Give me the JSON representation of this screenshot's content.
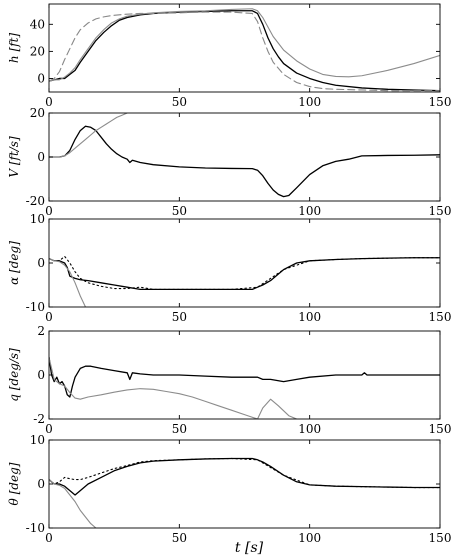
{
  "figure": {
    "x_axis_label": "t  [s]"
  },
  "chart_data": [
    {
      "type": "line",
      "ylabel": "h [ft]",
      "xlim": [
        0,
        150
      ],
      "ylim": [
        -10,
        55
      ],
      "xticks": [
        0,
        50,
        100,
        150
      ],
      "yticks": [
        0,
        20,
        40
      ],
      "grid": false,
      "series": [
        {
          "style": "dark-solid",
          "color": "#000000",
          "dash": "",
          "x": [
            0,
            2,
            4,
            6,
            8,
            10,
            12,
            15,
            18,
            21,
            24,
            27,
            30,
            35,
            40,
            50,
            60,
            70,
            78,
            80,
            82,
            84,
            86,
            88,
            90,
            95,
            100,
            105,
            110,
            120,
            130,
            140,
            150
          ],
          "y": [
            -2,
            -1,
            0,
            0,
            3,
            6,
            12,
            20,
            28,
            34,
            39,
            43,
            45,
            47,
            48,
            49,
            49.5,
            50,
            50,
            48,
            40,
            30,
            22,
            16,
            11,
            4,
            0,
            -3,
            -5,
            -7,
            -8,
            -8.5,
            -9
          ]
        },
        {
          "style": "gray-dashed",
          "color": "#888888",
          "dash": "7,4",
          "x": [
            0,
            2,
            4,
            6,
            8,
            10,
            12,
            15,
            18,
            21,
            24,
            27,
            30,
            35,
            40,
            50,
            60,
            70,
            78,
            80,
            82,
            84,
            86,
            90,
            95,
            100,
            105,
            110,
            120,
            130,
            140,
            150
          ],
          "y": [
            -2,
            0,
            5,
            14,
            22,
            30,
            36,
            41,
            44,
            45.5,
            46.5,
            47,
            47.5,
            48,
            48,
            48.5,
            49,
            49,
            48,
            42,
            30,
            20,
            12,
            3,
            -3,
            -6,
            -7.5,
            -8,
            -8.5,
            -9,
            -9,
            -9
          ]
        },
        {
          "style": "gray-solid",
          "color": "#8c8c8c",
          "dash": "",
          "x": [
            0,
            2,
            4,
            6,
            8,
            10,
            12,
            15,
            18,
            21,
            24,
            27,
            30,
            35,
            40,
            50,
            60,
            70,
            78,
            80,
            82,
            84,
            86,
            88,
            90,
            95,
            100,
            105,
            110,
            115,
            120,
            130,
            140,
            150
          ],
          "y": [
            -2,
            -1,
            -1,
            1,
            4,
            8,
            14,
            22,
            30,
            36,
            41,
            44,
            46,
            47.5,
            48.5,
            49.5,
            50,
            51,
            51.5,
            50,
            45,
            38,
            31,
            26,
            21,
            13,
            7,
            3,
            1.5,
            1.2,
            2,
            6,
            11,
            17
          ]
        }
      ]
    },
    {
      "type": "line",
      "ylabel": "V [ft/s]",
      "xlim": [
        0,
        150
      ],
      "ylim": [
        -20,
        20
      ],
      "xticks": [
        0,
        50,
        100,
        150
      ],
      "yticks": [
        -20,
        0,
        20
      ],
      "grid": false,
      "series": [
        {
          "style": "dark-solid",
          "color": "#000000",
          "dash": "",
          "x": [
            0,
            4,
            6,
            8,
            10,
            12,
            14,
            16,
            18,
            20,
            22,
            24,
            26,
            28,
            30,
            31,
            32,
            35,
            40,
            50,
            60,
            70,
            78,
            80,
            82,
            84,
            86,
            88,
            90,
            92,
            95,
            100,
            105,
            110,
            115,
            120,
            130,
            140,
            150
          ],
          "y": [
            0,
            0,
            0.5,
            3,
            8,
            12,
            14,
            13.5,
            12,
            9,
            6,
            3.5,
            1.5,
            0,
            -1,
            -2.5,
            -1.5,
            -2.5,
            -3.5,
            -4.5,
            -5,
            -5.2,
            -5.3,
            -6,
            -8.5,
            -12,
            -15,
            -17,
            -18,
            -17.5,
            -14,
            -8,
            -4,
            -2,
            -1,
            0.5,
            0.7,
            0.8,
            1
          ]
        },
        {
          "style": "gray-solid",
          "color": "#8c8c8c",
          "dash": "",
          "x": [
            0,
            4,
            6,
            8,
            10,
            12,
            14,
            16,
            18,
            20,
            22,
            24,
            26,
            28,
            30
          ],
          "y": [
            0,
            0,
            0.5,
            2,
            4,
            6,
            8,
            10,
            12,
            13.5,
            15,
            16.5,
            18,
            19,
            20
          ]
        }
      ]
    },
    {
      "type": "line",
      "ylabel": "α [deg]",
      "xlim": [
        0,
        150
      ],
      "ylim": [
        -10,
        10
      ],
      "xticks": [
        0,
        50,
        100,
        150
      ],
      "yticks": [
        -10,
        0,
        10
      ],
      "grid": false,
      "series": [
        {
          "style": "dark-solid",
          "color": "#000000",
          "dash": "",
          "x": [
            0,
            2,
            4,
            6,
            7,
            8,
            10,
            12,
            15,
            20,
            25,
            30,
            35,
            40,
            50,
            60,
            70,
            78,
            80,
            82,
            85,
            88,
            90,
            95,
            100,
            110,
            120,
            130,
            140,
            150
          ],
          "y": [
            1,
            0.5,
            0.5,
            0,
            -1,
            -3,
            -3.5,
            -3.8,
            -4,
            -4.5,
            -5,
            -5.5,
            -6,
            -6,
            -6,
            -6,
            -6,
            -6,
            -5.5,
            -5,
            -4,
            -2.5,
            -1.5,
            0,
            0.5,
            0.8,
            1,
            1.1,
            1.2,
            1.2
          ]
        },
        {
          "style": "dark-dotted",
          "color": "#000000",
          "dash": "1.5,3",
          "x": [
            0,
            2,
            4,
            6,
            8,
            10,
            12,
            15,
            20,
            25,
            30,
            35,
            40,
            50,
            60,
            70,
            80,
            90,
            100,
            110,
            120,
            130,
            140,
            150
          ],
          "y": [
            1,
            0.5,
            0.5,
            1.5,
            0,
            -2,
            -3.5,
            -4.5,
            -5.3,
            -5.8,
            -5.8,
            -5.5,
            -6,
            -6,
            -6,
            -6,
            -5.5,
            -1.5,
            0.5,
            0.8,
            1,
            1.1,
            1.2,
            1.2
          ]
        },
        {
          "style": "gray-solid",
          "color": "#8c8c8c",
          "dash": "",
          "x": [
            0,
            2,
            4,
            6,
            8,
            10,
            12,
            14
          ],
          "y": [
            1,
            0.5,
            0.3,
            -0.5,
            -2,
            -4.5,
            -7.5,
            -10
          ]
        }
      ]
    },
    {
      "type": "line",
      "ylabel": "q [deg/s]",
      "xlim": [
        0,
        150
      ],
      "ylim": [
        -2,
        2
      ],
      "xticks": [
        0,
        50,
        100,
        150
      ],
      "yticks": [
        -2,
        0,
        2
      ],
      "grid": false,
      "series": [
        {
          "style": "dark-solid",
          "color": "#000000",
          "dash": "",
          "x": [
            0,
            1,
            2,
            3,
            4,
            5,
            6,
            7,
            8,
            9,
            10,
            12,
            14,
            16,
            20,
            25,
            30,
            31,
            32,
            35,
            40,
            50,
            60,
            70,
            80,
            82,
            85,
            90,
            95,
            100,
            110,
            120,
            121,
            122,
            130,
            140,
            150
          ],
          "y": [
            0.8,
            0,
            -0.3,
            -0.1,
            -0.4,
            -0.3,
            -0.5,
            -0.9,
            -1,
            -0.5,
            -0.1,
            0.3,
            0.4,
            0.4,
            0.3,
            0.2,
            0.1,
            -0.2,
            0.1,
            0.05,
            0,
            0,
            -0.05,
            -0.1,
            -0.1,
            -0.2,
            -0.2,
            -0.3,
            -0.2,
            -0.1,
            0,
            0,
            0.1,
            0,
            0,
            0,
            0
          ]
        },
        {
          "style": "gray-solid",
          "color": "#8c8c8c",
          "dash": "",
          "x": [
            0,
            2,
            4,
            6,
            8,
            10,
            12,
            15,
            20,
            25,
            30,
            35,
            40,
            45,
            50,
            55,
            60,
            65,
            70,
            75,
            80,
            82,
            85,
            88,
            92,
            95
          ],
          "y": [
            0.8,
            -0.2,
            -0.4,
            -0.5,
            -0.8,
            -1.05,
            -1.1,
            -1.0,
            -0.9,
            -0.78,
            -0.68,
            -0.62,
            -0.65,
            -0.75,
            -0.85,
            -1.0,
            -1.2,
            -1.4,
            -1.6,
            -1.8,
            -2.0,
            -1.5,
            -1.1,
            -1.4,
            -1.85,
            -2.0
          ]
        }
      ]
    },
    {
      "type": "line",
      "ylabel": "θ [deg]",
      "xlim": [
        0,
        150
      ],
      "ylim": [
        -10,
        10
      ],
      "xticks": [
        0,
        50,
        100,
        150
      ],
      "yticks": [
        -10,
        0,
        10
      ],
      "grid": false,
      "series": [
        {
          "style": "dark-solid",
          "color": "#000000",
          "dash": "",
          "x": [
            0,
            2,
            4,
            6,
            8,
            10,
            12,
            15,
            20,
            25,
            30,
            35,
            40,
            50,
            60,
            70,
            78,
            80,
            82,
            85,
            90,
            95,
            100,
            110,
            120,
            130,
            140,
            150
          ],
          "y": [
            1,
            0,
            0,
            -0.5,
            -1.5,
            -2.5,
            -1.5,
            0,
            1.5,
            3,
            4,
            4.8,
            5.2,
            5.5,
            5.7,
            5.8,
            5.8,
            5.5,
            5,
            4,
            2,
            0.5,
            -0.2,
            -0.5,
            -0.6,
            -0.7,
            -0.8,
            -0.8
          ]
        },
        {
          "style": "dark-dotted",
          "color": "#000000",
          "dash": "1.5,3",
          "x": [
            0,
            2,
            4,
            6,
            8,
            10,
            12,
            15,
            20,
            25,
            30,
            35,
            40,
            50,
            60,
            70,
            80,
            90,
            100,
            110,
            120,
            130,
            140,
            150
          ],
          "y": [
            1,
            0,
            0.5,
            1.5,
            1.2,
            1,
            1,
            1.5,
            2.5,
            3.5,
            4.2,
            5,
            5.3,
            5.5,
            5.7,
            5.8,
            5.5,
            2,
            -0.2,
            -0.5,
            -0.6,
            -0.7,
            -0.8,
            -0.8
          ]
        },
        {
          "style": "gray-solid",
          "color": "#8c8c8c",
          "dash": "",
          "x": [
            0,
            2,
            4,
            6,
            8,
            10,
            12,
            14,
            16,
            18
          ],
          "y": [
            1,
            0,
            -0.3,
            -1,
            -2.5,
            -4,
            -6,
            -7.5,
            -9,
            -10
          ]
        }
      ]
    }
  ]
}
